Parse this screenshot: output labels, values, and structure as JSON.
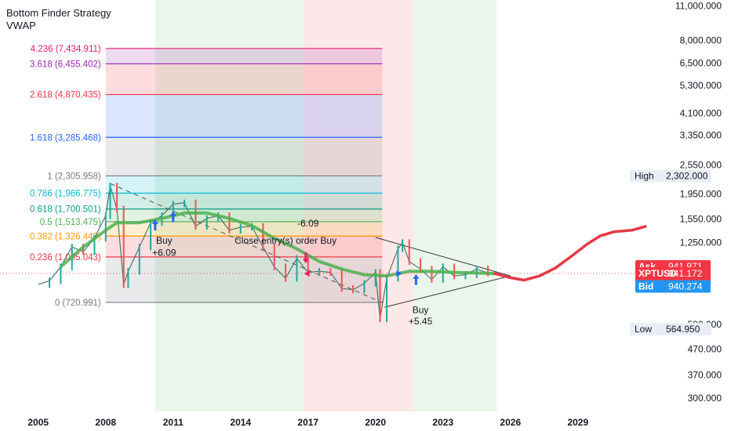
{
  "header": {
    "strategy_name": "Bottom Finder Strategy",
    "indicator_name": "VWAP"
  },
  "colors": {
    "up_candle": "#26a69a",
    "down_candle": "#ef5350",
    "price_line": "#ef5350",
    "vwap": "#4caf50",
    "entry_arrow_buy": "#2962ff",
    "entry_arrow_close": "#e91e63",
    "band_green": "#e8f5e9",
    "band_red": "#fde5e7",
    "forecast": "#e53945"
  },
  "chart_data": {
    "type": "line",
    "symbol": "XPTUSD",
    "x_scale": "time",
    "y_scale": "log",
    "xlim": [
      2003.3,
      2032.6
    ],
    "ylim": [
      265,
      11600
    ],
    "x_ticks": [
      "2005",
      "2008",
      "2011",
      "2014",
      "2017",
      "2020",
      "2023",
      "2026",
      "2029"
    ],
    "x_tick_values": [
      2005,
      2008,
      2011,
      2014,
      2017,
      2020,
      2023,
      2026,
      2029
    ],
    "y_ticks": [
      "11,000.000",
      "8,000.000",
      "6,500.000",
      "5,300.000",
      "4,100.000",
      "3,350.000",
      "2,550.000",
      "1,950.000",
      "1,550.000",
      "1,250.000",
      "590.000",
      "470.000",
      "370.000",
      "300.000"
    ],
    "y_tick_values": [
      11000,
      8000,
      6500,
      5300,
      4100,
      3350,
      2550,
      1950,
      1550,
      1250,
      590,
      470,
      370,
      300
    ],
    "price_series": [
      [
        2005.0,
        850
      ],
      [
        2005.5,
        880
      ],
      [
        2006.0,
        1000
      ],
      [
        2006.5,
        1200
      ],
      [
        2007.0,
        1150
      ],
      [
        2007.5,
        1300
      ],
      [
        2008.0,
        1600
      ],
      [
        2008.2,
        2100
      ],
      [
        2008.5,
        1700
      ],
      [
        2008.8,
        850
      ],
      [
        2009.0,
        960
      ],
      [
        2009.5,
        1200
      ],
      [
        2010.0,
        1500
      ],
      [
        2010.5,
        1600
      ],
      [
        2011.0,
        1780
      ],
      [
        2011.5,
        1800
      ],
      [
        2012.0,
        1450
      ],
      [
        2012.5,
        1560
      ],
      [
        2013.0,
        1600
      ],
      [
        2013.5,
        1400
      ],
      [
        2014.0,
        1440
      ],
      [
        2014.5,
        1450
      ],
      [
        2015.0,
        1200
      ],
      [
        2015.5,
        1000
      ],
      [
        2016.0,
        900
      ],
      [
        2016.5,
        1080
      ],
      [
        2017.0,
        950
      ],
      [
        2017.5,
        960
      ],
      [
        2018.0,
        950
      ],
      [
        2018.5,
        820
      ],
      [
        2019.0,
        810
      ],
      [
        2019.5,
        860
      ],
      [
        2020.0,
        950
      ],
      [
        2020.2,
        620
      ],
      [
        2020.5,
        900
      ],
      [
        2021.0,
        1180
      ],
      [
        2021.2,
        1250
      ],
      [
        2021.5,
        1050
      ],
      [
        2022.0,
        980
      ],
      [
        2022.5,
        890
      ],
      [
        2023.0,
        1000
      ],
      [
        2023.5,
        920
      ],
      [
        2024.0,
        930
      ],
      [
        2024.5,
        980
      ],
      [
        2025.0,
        945
      ]
    ],
    "vwap_series": [
      [
        2006.0,
        1000
      ],
      [
        2007.0,
        1200
      ],
      [
        2008.0,
        1400
      ],
      [
        2008.5,
        1500
      ],
      [
        2009.5,
        1500
      ],
      [
        2010.5,
        1560
      ],
      [
        2011.5,
        1640
      ],
      [
        2012.5,
        1640
      ],
      [
        2013.5,
        1560
      ],
      [
        2014.5,
        1460
      ],
      [
        2015.5,
        1300
      ],
      [
        2016.5,
        1180
      ],
      [
        2017.5,
        1050
      ],
      [
        2018.5,
        980
      ],
      [
        2019.5,
        930
      ],
      [
        2020.5,
        920
      ],
      [
        2021.5,
        960
      ],
      [
        2022.5,
        960
      ],
      [
        2023.5,
        950
      ],
      [
        2024.5,
        945
      ],
      [
        2025.3,
        940
      ]
    ],
    "forecast_series": [
      [
        2025.3,
        941
      ],
      [
        2026.0,
        905
      ],
      [
        2026.6,
        885
      ],
      [
        2027.3,
        920
      ],
      [
        2028.0,
        990
      ],
      [
        2028.7,
        1100
      ],
      [
        2029.4,
        1230
      ],
      [
        2030.0,
        1330
      ],
      [
        2030.6,
        1380
      ],
      [
        2031.4,
        1400
      ],
      [
        2032.0,
        1450
      ]
    ],
    "fibonacci": {
      "x_start": 2008.0,
      "x_end": 2020.3,
      "levels": [
        {
          "label": "4.236 (7,434.911)",
          "value": 7434.911,
          "color": "#e91e63"
        },
        {
          "label": "3.618 (6,455.402)",
          "value": 6455.402,
          "color": "#9c27b0"
        },
        {
          "label": "2.618 (4,870.435)",
          "value": 4870.435,
          "color": "#f23645"
        },
        {
          "label": "1.618 (3,285.468)",
          "value": 3285.468,
          "color": "#2962ff"
        },
        {
          "label": "1 (2,305.958)",
          "value": 2305.958,
          "color": "#787b86"
        },
        {
          "label": "0.786 (1,966.775)",
          "value": 1966.775,
          "color": "#00bcd4"
        },
        {
          "label": "0.618 (1,700.501)",
          "value": 1700.501,
          "color": "#089981"
        },
        {
          "label": "0.5 (1,513.475)",
          "value": 1513.475,
          "color": "#4caf50"
        },
        {
          "label": "0.382 (1,326.448)",
          "value": 1326.448,
          "color": "#ff9800"
        },
        {
          "label": "0.236 (1,095.043)",
          "value": 1095.043,
          "color": "#f23645"
        },
        {
          "label": "0 (720.991)",
          "value": 720.991,
          "color": "#787b86"
        }
      ]
    },
    "bands": [
      {
        "x0": 2010.2,
        "x1": 2016.8,
        "kind": "green"
      },
      {
        "x0": 2016.8,
        "x1": 2021.7,
        "kind": "red"
      },
      {
        "x0": 2021.7,
        "x1": 2025.4,
        "kind": "green"
      }
    ],
    "triangle": {
      "upper": [
        [
          2020.0,
          1310
        ],
        [
          2026.0,
          920
        ]
      ],
      "lower": [
        [
          2020.4,
          690
        ],
        [
          2026.0,
          920
        ]
      ]
    },
    "trend_dashed": [
      [
        2008.2,
        2150
      ],
      [
        2020.3,
        720
      ]
    ],
    "annotations": [
      {
        "text": "Buy",
        "x": 2010.6,
        "y": 1235,
        "color": "#131722"
      },
      {
        "text": "+6.09",
        "x": 2010.6,
        "y": 1105,
        "color": "#131722"
      },
      {
        "text": "-6.09",
        "x": 2017.0,
        "y": 1450,
        "color": "#131722"
      },
      {
        "text": "Close entry(s) order Buy",
        "x": 2016.0,
        "y": 1235,
        "color": "#131722"
      },
      {
        "text": "Buy",
        "x": 2022.0,
        "y": 655,
        "color": "#131722"
      },
      {
        "text": "+5.45",
        "x": 2022.0,
        "y": 590,
        "color": "#131722"
      }
    ],
    "markers": [
      {
        "type": "arrow-up",
        "x": 2010.2,
        "y": 1470,
        "color": "#2962ff"
      },
      {
        "type": "arrow-up",
        "x": 2011.0,
        "y": 1585,
        "color": "#2962ff"
      },
      {
        "type": "arrow-down",
        "x": 2016.9,
        "y": 1085,
        "color": "#e91e63"
      },
      {
        "type": "triangle-left",
        "x": 2017.0,
        "y": 940,
        "color": "#e91e63"
      },
      {
        "type": "arrow-up",
        "x": 2021.8,
        "y": 890,
        "color": "#2962ff"
      },
      {
        "type": "triangle-right",
        "x": 2021.0,
        "y": 940,
        "color": "#2962ff"
      }
    ],
    "price_labels": [
      {
        "label": "High",
        "value": "2,302.000",
        "price": 2302,
        "style": "neutral"
      },
      {
        "label": "Ask",
        "value": "941.971",
        "price": 1004,
        "style": "red"
      },
      {
        "label": "XPTUSD",
        "value": "941.172",
        "price": 941.172,
        "style": "red",
        "countdown": "8d 1h"
      },
      {
        "label": "Bid",
        "value": "940.274",
        "price": 835,
        "style": "blue"
      },
      {
        "label": "Low",
        "value": "564.950",
        "price": 564.95,
        "style": "neutral"
      }
    ]
  }
}
